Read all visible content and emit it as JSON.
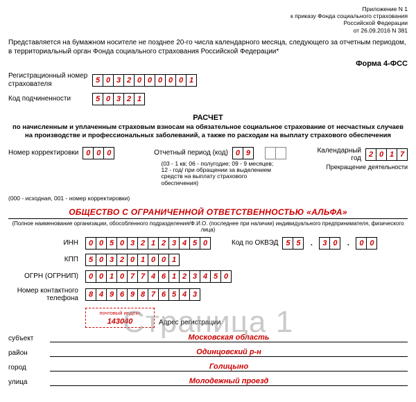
{
  "header": {
    "app1": "Приложение N 1",
    "app2": "к приказу Фонда социального страхования",
    "app3": "Российской Федерации",
    "app4": "от 26.09.2016 N 381"
  },
  "intro": "Представляется на бумажном носителе не позднее 20-го числа календарного месяца, следующего за отчетным периодом, в территориальный орган Фонда социального страхования Российской Федерации*",
  "form_name": "Форма 4-ФСС",
  "reg": {
    "label": "Регистрационный номер страхователя",
    "digits": [
      "5",
      "0",
      "3",
      "2",
      "0",
      "0",
      "0",
      "0",
      "0",
      "1"
    ]
  },
  "sub": {
    "label": "Код подчиненности",
    "digits": [
      "5",
      "0",
      "3",
      "2",
      "1"
    ]
  },
  "title": "РАСЧЕТ",
  "subtitle": "по начисленным и уплаченным страховым взносам на обязательное социальное страхование от несчастных случаев на производстве и профессиональных заболеваний, а также по расходам на выплату страхового обеспечения",
  "corr": {
    "label": "Номер корректировки",
    "digits": [
      "0",
      "0",
      "0"
    ],
    "note": "(000 - исходная, 001 - номер корректировки)"
  },
  "period": {
    "label": "Отчетный период (код)",
    "digits": [
      "0",
      "9"
    ],
    "extra_digits": [
      "",
      ""
    ],
    "note": "(03 - 1 кв; 06 - полугодие; 09 - 9 месяцев; 12 - год/ при обращении за выделением средств на выплату страхового обеспечения)"
  },
  "year": {
    "label": "Календарный год",
    "digits": [
      "2",
      "0",
      "1",
      "7"
    ],
    "termination": "Прекращение деятельности"
  },
  "org_name": "ОБЩЕСТВО С ОГРАНИЧЕННОЙ ОТВЕТСТВЕННОСТЬЮ «АЛЬФА»",
  "org_caption": "(Полное наименование организации, обособленного подразделения/Ф.И.О. (последнее при наличии) индивидуального предпринимателя, физического лица)",
  "inn": {
    "label": "ИНН",
    "digits": [
      "0",
      "0",
      "5",
      "0",
      "3",
      "2",
      "1",
      "2",
      "3",
      "4",
      "5",
      "0"
    ]
  },
  "okved": {
    "label": "Код по ОКВЭД",
    "g1": [
      "5",
      "5"
    ],
    "g2": [
      "3",
      "0"
    ],
    "g3": [
      "0",
      "0"
    ]
  },
  "kpp": {
    "label": "КПП",
    "digits": [
      "5",
      "0",
      "3",
      "2",
      "0",
      "1",
      "0",
      "0",
      "1"
    ]
  },
  "ogrn": {
    "label": "ОГРН (ОГРНИП)",
    "digits": [
      "0",
      "0",
      "1",
      "0",
      "7",
      "7",
      "4",
      "6",
      "1",
      "2",
      "3",
      "4",
      "5",
      "0"
    ]
  },
  "phone": {
    "label": "Номер контактного телефона",
    "digits": [
      "8",
      "4",
      "9",
      "6",
      "9",
      "8",
      "7",
      "6",
      "5",
      "4",
      "3"
    ]
  },
  "post": {
    "index_label": "почтовый индекс",
    "index": "143040",
    "addr_label": "Адрес регистрации"
  },
  "addr": {
    "subject_label": "субъект",
    "subject": "Московская область",
    "district_label": "район",
    "district": "Одинцовский р-н",
    "city_label": "город",
    "city": "Голицыно",
    "street_label": "улица",
    "street": "Молодежный проезд"
  },
  "watermark": "Страница 1"
}
